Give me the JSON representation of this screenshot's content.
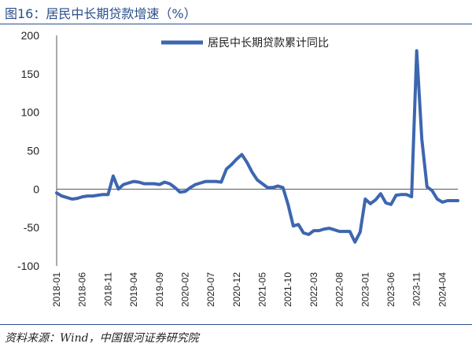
{
  "figure": {
    "title": "图16：居民中长期贷款增速（%）",
    "source": "资料来源：Wind，中国银河证券研究院"
  },
  "chart_data": {
    "type": "line",
    "title": "",
    "xlabel": "",
    "ylabel": "",
    "ylim": [
      -100,
      200
    ],
    "yticks": [
      200,
      150,
      100,
      50,
      0,
      -50,
      -100
    ],
    "xtick_labels": [
      "2018-01",
      "2018-06",
      "2018-11",
      "2019-04",
      "2019-09",
      "2020-02",
      "2020-07",
      "2020-12",
      "2021-05",
      "2021-10",
      "2022-03",
      "2022-08",
      "2023-01",
      "2023-06",
      "2023-11",
      "2024-04"
    ],
    "grid": false,
    "legend": "top-center",
    "colors": {
      "series": "#3d66b0"
    },
    "x": [
      "2018-01",
      "2018-02",
      "2018-03",
      "2018-04",
      "2018-05",
      "2018-06",
      "2018-07",
      "2018-08",
      "2018-09",
      "2018-10",
      "2018-11",
      "2018-12",
      "2019-01",
      "2019-02",
      "2019-03",
      "2019-04",
      "2019-05",
      "2019-06",
      "2019-07",
      "2019-08",
      "2019-09",
      "2019-10",
      "2019-11",
      "2019-12",
      "2020-01",
      "2020-02",
      "2020-03",
      "2020-04",
      "2020-05",
      "2020-06",
      "2020-07",
      "2020-08",
      "2020-09",
      "2020-10",
      "2020-11",
      "2020-12",
      "2021-01",
      "2021-02",
      "2021-03",
      "2021-04",
      "2021-05",
      "2021-06",
      "2021-07",
      "2021-08",
      "2021-09",
      "2021-10",
      "2021-11",
      "2021-12",
      "2022-01",
      "2022-02",
      "2022-03",
      "2022-04",
      "2022-05",
      "2022-06",
      "2022-07",
      "2022-08",
      "2022-09",
      "2022-10",
      "2022-11",
      "2022-12",
      "2023-01",
      "2023-02",
      "2023-03",
      "2023-04",
      "2023-05",
      "2023-06",
      "2023-07",
      "2023-08",
      "2023-09",
      "2023-10",
      "2023-11",
      "2023-12",
      "2024-01",
      "2024-02",
      "2024-03",
      "2024-04",
      "2024-05",
      "2024-06",
      "2024-07"
    ],
    "series": [
      {
        "name": "居民中长期贷款累计同比",
        "values": [
          -5,
          -9,
          -11,
          -13,
          -12,
          -10,
          -9,
          -9,
          -8,
          -7,
          -7,
          17,
          0,
          6,
          8,
          10,
          9,
          7,
          7,
          7,
          6,
          9,
          7,
          2,
          -4,
          -3,
          2,
          6,
          8,
          10,
          10,
          10,
          9,
          26,
          32,
          39,
          45,
          35,
          22,
          12,
          7,
          2,
          2,
          4,
          2,
          -20,
          -48,
          -46,
          -57,
          -59,
          -54,
          -54,
          -52,
          -51,
          -53,
          -55,
          -55,
          -55,
          -69,
          -56,
          -13,
          -19,
          -14,
          -6,
          -18,
          -20,
          -8,
          -7,
          -7,
          -10,
          180,
          65,
          3,
          -2,
          -13,
          -17,
          -15,
          -15,
          -15
        ]
      }
    ]
  }
}
